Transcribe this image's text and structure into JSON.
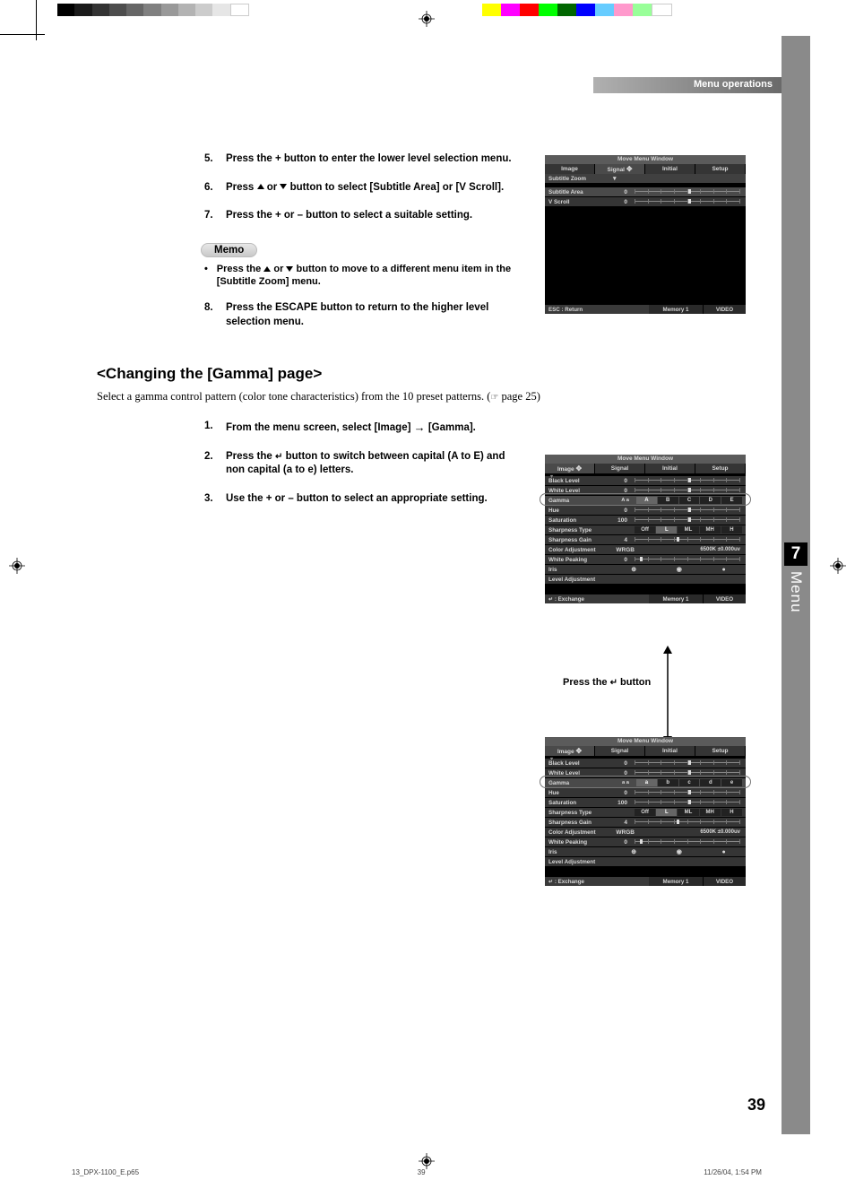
{
  "header": {
    "title": "Menu operations"
  },
  "sidetab": {
    "chapter": "7",
    "label": "Menu"
  },
  "page_number": "39",
  "footer": {
    "file": "13_DPX-1100_E.p65",
    "page": "39",
    "datetime": "11/26/04, 1:54 PM"
  },
  "colors": {
    "gray_bar": [
      "#000000",
      "#1a1a1a",
      "#333333",
      "#4d4d4d",
      "#666666",
      "#808080",
      "#999999",
      "#b3b3b3",
      "#cccccc",
      "#e6e6e6",
      "#ffffff"
    ],
    "color_bar": [
      "#ffff00",
      "#ff00ff",
      "#ff0000",
      "#00ff00",
      "#006600",
      "#0000ff",
      "#66ccff",
      "#ff99cc",
      "#99ff99",
      "#ffffff"
    ]
  },
  "steps_top": [
    {
      "n": "5.",
      "t": "Press the + button to enter the lower level selection menu."
    },
    {
      "n": "6.",
      "t_pre": "Press ",
      "t_post": " button to select [Subtitle Area] or [V Scroll]."
    },
    {
      "n": "7.",
      "t": "Press the + or – button to select a suitable setting."
    }
  ],
  "memo": {
    "label": "Memo",
    "text_pre": "Press the ",
    "text_post": " button to move to a different menu item in the [Subtitle Zoom] menu."
  },
  "step8": {
    "n": "8.",
    "t": "Press the ESCAPE button to return to the higher level selection menu."
  },
  "section": {
    "heading": "<Changing the [Gamma] page>",
    "intro_pre": "Select a gamma control pattern (color tone characteristics) from the 10 preset patterns. (",
    "intro_post": " page 25)"
  },
  "steps_gamma": [
    {
      "n": "1.",
      "t_pre": "From the menu screen, select [Image] ",
      "t_post": " [Gamma]."
    },
    {
      "n": "2.",
      "t_pre": "Press the ",
      "t_post": " button to switch between capital (A to E) and non capital (a to e) letters."
    },
    {
      "n": "3.",
      "t": "Use the + or – button to select an appropriate setting."
    }
  ],
  "between": "Press the        button",
  "osd_common": {
    "title": "Move Menu Window",
    "tabs": [
      "Image",
      "Signal",
      "Initial",
      "Setup"
    ],
    "footer_memory": "Memory 1",
    "footer_video": "VIDEO"
  },
  "osd1": {
    "rows": [
      {
        "label": "Subtitle Zoom",
        "type": "header"
      },
      {
        "label": "Subtitle Area",
        "val": "0",
        "type": "slider",
        "thumb": 50
      },
      {
        "label": "V Scroll",
        "val": "0",
        "type": "slider",
        "thumb": 50
      }
    ],
    "footer_l": "ESC : Return"
  },
  "osd_image": {
    "rows": [
      {
        "label": "Black Level",
        "val": "0",
        "type": "slider",
        "thumb": 50
      },
      {
        "label": "White Level",
        "val": "0",
        "type": "slider",
        "thumb": 50
      },
      {
        "label": "Gamma",
        "val": "A a",
        "type": "gamma",
        "opts": [
          "A",
          "B",
          "C",
          "D",
          "E"
        ],
        "sel": 0
      },
      {
        "label": "Hue",
        "val": "0",
        "type": "slider",
        "thumb": 50
      },
      {
        "label": "Saturation",
        "val": "100",
        "type": "slider",
        "thumb": 50
      },
      {
        "label": "Sharpness Type",
        "val": "",
        "type": "opts",
        "opts": [
          "Off",
          "L",
          "ML",
          "MH",
          "H"
        ],
        "sel": 1
      },
      {
        "label": "Sharpness Gain",
        "val": "4",
        "type": "slider",
        "thumb": 40
      },
      {
        "label": "Color Adjustment",
        "val": "WRGB",
        "type": "extra",
        "extra": "6500K ±0.000uv"
      },
      {
        "label": "White Peaking",
        "val": "0",
        "type": "slider",
        "thumb": 8
      },
      {
        "label": "Iris",
        "val": "",
        "type": "iris"
      },
      {
        "label": "Level Adjustment",
        "val": "",
        "type": "plain"
      }
    ],
    "footer_l": "↵ : Exchange"
  },
  "osd_image2_gamma": {
    "val": "a a",
    "opts": [
      "a",
      "b",
      "c",
      "d",
      "e"
    ],
    "sel": 0
  }
}
